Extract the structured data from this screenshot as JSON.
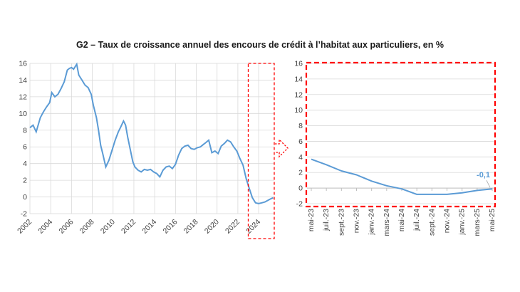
{
  "title": "G2 – Taux de croissance annuel des encours de crédit à l’habitat aux particuliers, en %",
  "colors": {
    "series": "#5b9bd5",
    "highlight": "#ff0000",
    "text": "#404040",
    "grid": "#d9d9d9"
  },
  "chart_data": [
    {
      "type": "line",
      "name": "long-term",
      "ylim": [
        -2,
        16
      ],
      "yticks": [
        -2,
        0,
        2,
        4,
        6,
        8,
        10,
        12,
        14,
        16
      ],
      "xlim": [
        2002,
        2025.5
      ],
      "xticks": [
        "2002",
        "2004",
        "2006",
        "2008",
        "2010",
        "2012",
        "2014",
        "2016",
        "2018",
        "2020",
        "2022",
        "2024"
      ],
      "x": [
        2002.0,
        2002.3,
        2002.6,
        2003.0,
        2003.3,
        2003.6,
        2003.9,
        2004.1,
        2004.4,
        2004.7,
        2005.0,
        2005.3,
        2005.6,
        2005.8,
        2006.0,
        2006.2,
        2006.5,
        2006.7,
        2007.0,
        2007.3,
        2007.6,
        2007.9,
        2008.1,
        2008.4,
        2008.6,
        2008.8,
        2009.0,
        2009.3,
        2009.6,
        2009.9,
        2010.2,
        2010.5,
        2010.7,
        2011.0,
        2011.2,
        2011.4,
        2011.6,
        2011.9,
        2012.1,
        2012.4,
        2012.7,
        2013.0,
        2013.3,
        2013.6,
        2013.9,
        2014.2,
        2014.5,
        2014.8,
        2015.1,
        2015.4,
        2015.7,
        2016.0,
        2016.3,
        2016.6,
        2016.9,
        2017.2,
        2017.5,
        2017.8,
        2018.1,
        2018.4,
        2018.7,
        2018.9,
        2019.2,
        2019.5,
        2019.8,
        2020.1,
        2020.4,
        2020.7,
        2021.0,
        2021.3,
        2021.6,
        2021.9,
        2022.2,
        2022.5,
        2022.8,
        2023.1,
        2023.4,
        2023.7,
        2024.0,
        2024.3,
        2024.6,
        2024.9,
        2025.2,
        2025.4
      ],
      "y": [
        8.3,
        8.6,
        7.8,
        9.5,
        10.2,
        10.8,
        11.3,
        12.5,
        12.0,
        12.3,
        13.0,
        13.8,
        15.2,
        15.4,
        15.5,
        15.3,
        15.9,
        14.6,
        14.0,
        13.4,
        13.1,
        12.3,
        11.0,
        9.5,
        8.0,
        6.2,
        5.2,
        3.6,
        4.4,
        5.6,
        6.8,
        7.8,
        8.3,
        9.1,
        8.6,
        7.2,
        6.0,
        4.2,
        3.6,
        3.2,
        3.0,
        3.3,
        3.2,
        3.3,
        3.0,
        2.8,
        2.4,
        3.2,
        3.6,
        3.7,
        3.4,
        3.9,
        5.0,
        5.8,
        6.1,
        6.2,
        5.8,
        5.7,
        5.9,
        6.0,
        6.3,
        6.5,
        6.8,
        5.3,
        5.5,
        5.2,
        6.1,
        6.4,
        6.8,
        6.6,
        6.0,
        5.5,
        4.6,
        3.8,
        2.2,
        1.0,
        -0.1,
        -0.7,
        -0.8,
        -0.7,
        -0.6,
        -0.4,
        -0.2,
        -0.1
      ]
    },
    {
      "type": "line",
      "name": "zoom",
      "ylim": [
        -2,
        16
      ],
      "yticks": [
        -2,
        0,
        2,
        4,
        6,
        8,
        10,
        12,
        14,
        16
      ],
      "categories": [
        "mai-23",
        "juil.-23",
        "sept.-23",
        "nov.-23",
        "janv.-24",
        "mars-24",
        "mai-24",
        "juil.-24",
        "sept.-24",
        "nov.-24",
        "janv.-25",
        "mars-25",
        "mai-25"
      ],
      "values": [
        3.7,
        3.0,
        2.2,
        1.7,
        0.9,
        0.3,
        -0.1,
        -0.8,
        -0.8,
        -0.8,
        -0.6,
        -0.3,
        -0.1
      ],
      "data_label": "-0,1"
    }
  ]
}
